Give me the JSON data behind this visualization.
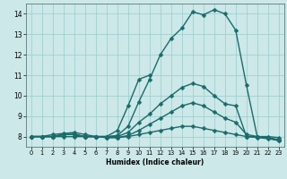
{
  "xlabel": "Humidex (Indice chaleur)",
  "background_color": "#cce8e8",
  "grid_color": "#99cccc",
  "line_color": "#1a6b6b",
  "line_width": 1.0,
  "marker": "D",
  "marker_size": 2.5,
  "xlim": [
    -0.5,
    23.5
  ],
  "ylim": [
    7.5,
    14.5
  ],
  "xticks": [
    0,
    1,
    2,
    3,
    4,
    5,
    6,
    7,
    8,
    9,
    10,
    11,
    12,
    13,
    14,
    15,
    16,
    17,
    18,
    19,
    20,
    21,
    22,
    23
  ],
  "yticks": [
    8,
    9,
    10,
    11,
    12,
    13,
    14
  ],
  "series": [
    [
      8.0,
      8.0,
      8.1,
      8.15,
      8.2,
      8.1,
      8.0,
      8.0,
      8.05,
      8.5,
      9.7,
      10.8,
      12.0,
      12.8,
      13.3,
      14.1,
      13.95,
      14.2,
      14.0,
      13.2,
      10.5,
      8.0,
      7.95,
      7.8
    ],
    [
      8.0,
      8.0,
      8.0,
      8.1,
      8.1,
      8.0,
      8.0,
      8.0,
      8.3,
      9.5,
      10.8,
      11.0,
      null,
      null,
      null,
      null,
      null,
      null,
      null,
      null,
      null,
      null,
      null,
      null
    ],
    [
      8.0,
      8.0,
      8.0,
      8.1,
      8.1,
      8.0,
      8.0,
      8.0,
      8.0,
      8.2,
      8.7,
      9.1,
      9.6,
      10.0,
      10.4,
      10.6,
      10.45,
      10.0,
      9.6,
      9.5,
      8.0,
      8.0,
      8.0,
      7.95
    ],
    [
      8.0,
      8.0,
      8.0,
      8.1,
      8.1,
      8.0,
      8.0,
      7.95,
      7.95,
      8.05,
      8.3,
      8.6,
      8.9,
      9.2,
      9.5,
      9.65,
      9.5,
      9.2,
      8.9,
      8.7,
      8.1,
      8.0,
      7.95,
      7.85
    ],
    [
      8.0,
      8.0,
      8.0,
      8.0,
      8.0,
      8.0,
      8.0,
      7.95,
      7.95,
      8.0,
      8.1,
      8.2,
      8.3,
      8.4,
      8.5,
      8.5,
      8.4,
      8.3,
      8.2,
      8.1,
      8.0,
      7.95,
      7.9,
      7.8
    ]
  ]
}
